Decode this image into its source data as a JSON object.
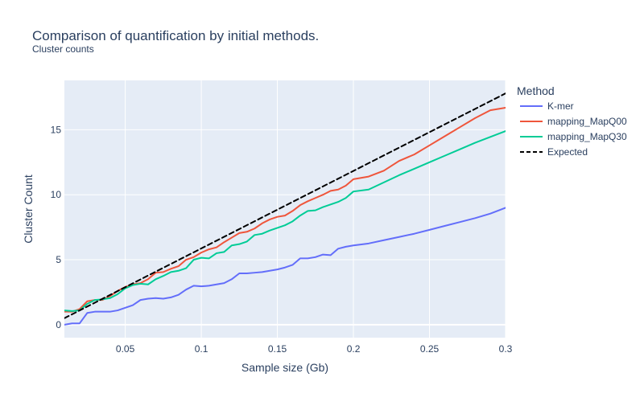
{
  "chart_data": {
    "type": "line",
    "title": "Comparison of quantification by initial methods.",
    "subtitle": "Cluster counts",
    "xlabel": "Sample size (Gb)",
    "ylabel": "Cluster Count",
    "xlim": [
      0.01,
      0.3
    ],
    "ylim": [
      -1.0,
      18.8
    ],
    "xticks": [
      0.05,
      0.1,
      0.15,
      0.2,
      0.25,
      0.3
    ],
    "xtick_labels": [
      "0.05",
      "0.1",
      "0.15",
      "0.2",
      "0.25",
      "0.3"
    ],
    "yticks": [
      0,
      5,
      10,
      15
    ],
    "ytick_labels": [
      "0",
      "5",
      "10",
      "15"
    ],
    "grid": true,
    "plot_bgcolor": "#e5ecf6",
    "legend": {
      "title": "Method",
      "placement": "right"
    },
    "series": [
      {
        "name": "K-mer",
        "color": "#636efa",
        "dash": "solid",
        "x": [
          0.01,
          0.015,
          0.02,
          0.025,
          0.03,
          0.035,
          0.04,
          0.045,
          0.05,
          0.055,
          0.06,
          0.065,
          0.07,
          0.075,
          0.08,
          0.085,
          0.09,
          0.095,
          0.1,
          0.105,
          0.11,
          0.115,
          0.12,
          0.125,
          0.13,
          0.135,
          0.14,
          0.145,
          0.15,
          0.155,
          0.16,
          0.165,
          0.17,
          0.175,
          0.18,
          0.185,
          0.19,
          0.195,
          0.2,
          0.21,
          0.22,
          0.23,
          0.24,
          0.25,
          0.26,
          0.27,
          0.28,
          0.29,
          0.3
        ],
        "y": [
          0.0,
          0.1,
          0.1,
          0.9,
          1.0,
          1.0,
          1.0,
          1.1,
          1.3,
          1.5,
          1.9,
          2.0,
          2.05,
          2.0,
          2.1,
          2.3,
          2.7,
          3.0,
          2.95,
          3.0,
          3.1,
          3.2,
          3.5,
          3.95,
          3.95,
          4.0,
          4.05,
          4.15,
          4.25,
          4.4,
          4.6,
          5.1,
          5.1,
          5.2,
          5.4,
          5.35,
          5.85,
          6.0,
          6.1,
          6.25,
          6.5,
          6.75,
          7.0,
          7.3,
          7.6,
          7.9,
          8.2,
          8.55,
          9.0
        ]
      },
      {
        "name": "mapping_MapQ00",
        "color": "#ef553b",
        "dash": "solid",
        "x": [
          0.01,
          0.015,
          0.02,
          0.025,
          0.03,
          0.035,
          0.04,
          0.045,
          0.05,
          0.055,
          0.06,
          0.065,
          0.07,
          0.075,
          0.08,
          0.085,
          0.09,
          0.095,
          0.1,
          0.105,
          0.11,
          0.115,
          0.12,
          0.125,
          0.13,
          0.135,
          0.14,
          0.145,
          0.15,
          0.155,
          0.16,
          0.165,
          0.17,
          0.175,
          0.18,
          0.185,
          0.19,
          0.195,
          0.2,
          0.21,
          0.22,
          0.23,
          0.24,
          0.25,
          0.26,
          0.27,
          0.28,
          0.29,
          0.3
        ],
        "y": [
          1.0,
          1.0,
          1.2,
          1.8,
          1.9,
          1.9,
          2.2,
          2.6,
          2.9,
          3.1,
          3.2,
          3.5,
          4.0,
          4.05,
          4.3,
          4.5,
          5.0,
          5.2,
          5.55,
          5.8,
          5.95,
          6.35,
          6.7,
          7.05,
          7.15,
          7.4,
          7.8,
          8.1,
          8.3,
          8.4,
          8.75,
          9.2,
          9.5,
          9.75,
          10.0,
          10.3,
          10.4,
          10.7,
          11.2,
          11.4,
          11.85,
          12.6,
          13.1,
          13.8,
          14.5,
          15.2,
          15.9,
          16.5,
          16.7
        ]
      },
      {
        "name": "mapping_MapQ30",
        "color": "#00cc96",
        "dash": "solid",
        "x": [
          0.01,
          0.015,
          0.02,
          0.025,
          0.03,
          0.035,
          0.04,
          0.045,
          0.05,
          0.055,
          0.06,
          0.065,
          0.07,
          0.075,
          0.08,
          0.085,
          0.09,
          0.095,
          0.1,
          0.105,
          0.11,
          0.115,
          0.12,
          0.125,
          0.13,
          0.135,
          0.14,
          0.145,
          0.15,
          0.155,
          0.16,
          0.165,
          0.17,
          0.175,
          0.18,
          0.185,
          0.19,
          0.195,
          0.2,
          0.21,
          0.22,
          0.23,
          0.24,
          0.25,
          0.26,
          0.27,
          0.28,
          0.29,
          0.3
        ],
        "y": [
          1.1,
          1.05,
          1.1,
          1.6,
          1.9,
          1.95,
          2.05,
          2.35,
          2.8,
          3.05,
          3.15,
          3.1,
          3.5,
          3.75,
          4.05,
          4.15,
          4.35,
          5.0,
          5.15,
          5.1,
          5.5,
          5.6,
          6.1,
          6.2,
          6.4,
          6.9,
          7.0,
          7.25,
          7.45,
          7.65,
          7.95,
          8.4,
          8.75,
          8.8,
          9.05,
          9.25,
          9.45,
          9.75,
          10.25,
          10.4,
          10.95,
          11.5,
          12.0,
          12.5,
          13.0,
          13.5,
          14.0,
          14.45,
          14.9
        ]
      },
      {
        "name": "Expected",
        "color": "#000000",
        "dash": "dashed",
        "x": [
          0.01,
          0.3
        ],
        "y": [
          0.5,
          17.8
        ]
      }
    ]
  }
}
